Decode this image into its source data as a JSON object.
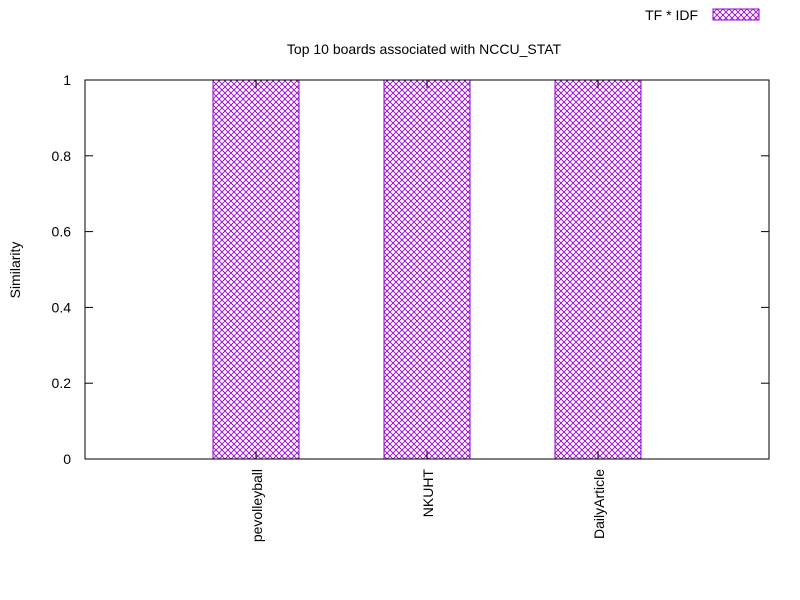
{
  "chart_data": {
    "type": "bar",
    "title": "Top 10 boards associated with NCCU_STAT",
    "xlabel": "",
    "ylabel": "Similarity",
    "ylim": [
      0,
      1
    ],
    "yticks": [
      "0",
      "0.2",
      "0.4",
      "0.6",
      "0.8",
      "1"
    ],
    "ytick_values": [
      0,
      0.2,
      0.4,
      0.6,
      0.8,
      1
    ],
    "categories": [
      "",
      "pevolleyball",
      "NKUHT",
      "DailyArticle",
      ""
    ],
    "series": [
      {
        "name": "TF * IDF",
        "values": [
          null,
          1,
          1,
          1,
          null
        ]
      }
    ],
    "legend_position": "top-right",
    "grid": false,
    "colors": {
      "bar_stroke": "#9400d3",
      "axis": "#000000"
    },
    "bar_fill_pattern": "crosshatch"
  }
}
